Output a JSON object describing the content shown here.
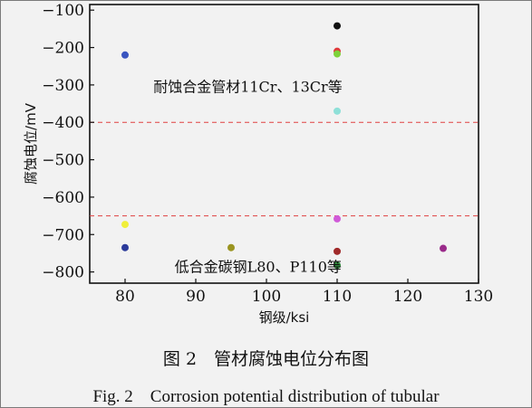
{
  "chart_data": {
    "type": "scatter",
    "title": "",
    "xlabel": "钢级/ksi",
    "ylabel": "腐蚀电位/mV",
    "xlim": [
      75,
      130
    ],
    "ylim": [
      -830,
      -85
    ],
    "xticks": [
      80,
      90,
      100,
      110,
      120,
      130
    ],
    "yticks": [
      -100,
      -200,
      -300,
      -400,
      -500,
      -600,
      -700,
      -800
    ],
    "grid": false,
    "points": [
      {
        "x": 80,
        "y": -220,
        "color": "#3a55c0"
      },
      {
        "x": 80,
        "y": -673,
        "color": "#f0ef3a"
      },
      {
        "x": 80,
        "y": -735,
        "color": "#2b3a9a"
      },
      {
        "x": 95,
        "y": -735,
        "color": "#9a9420"
      },
      {
        "x": 110,
        "y": -142,
        "color": "#111111"
      },
      {
        "x": 110,
        "y": -210,
        "color": "#e03a3a"
      },
      {
        "x": 110,
        "y": -217,
        "color": "#7ed23a"
      },
      {
        "x": 110,
        "y": -370,
        "color": "#8fe0d8"
      },
      {
        "x": 110,
        "y": -658,
        "color": "#d05ad8"
      },
      {
        "x": 110,
        "y": -745,
        "color": "#a02a2a"
      },
      {
        "x": 110,
        "y": -782,
        "color": "#2e8a3a"
      },
      {
        "x": 125,
        "y": -737,
        "color": "#9a2a8a"
      }
    ],
    "reference_lines": [
      {
        "y": -400,
        "style": "dashed",
        "color": "#e04040"
      },
      {
        "y": -650,
        "style": "dashed",
        "color": "#e04040"
      }
    ],
    "annotations": [
      {
        "text": "耐蚀合金管材11Cr、13Cr等",
        "x": 84,
        "y": -318
      },
      {
        "text": "低合金碳钢L80、P110等",
        "x": 87,
        "y": -800
      }
    ]
  },
  "caption": {
    "zh": "图 2　管材腐蚀电位分布图",
    "en": "Fig. 2　Corrosion potential distribution of tubular"
  }
}
